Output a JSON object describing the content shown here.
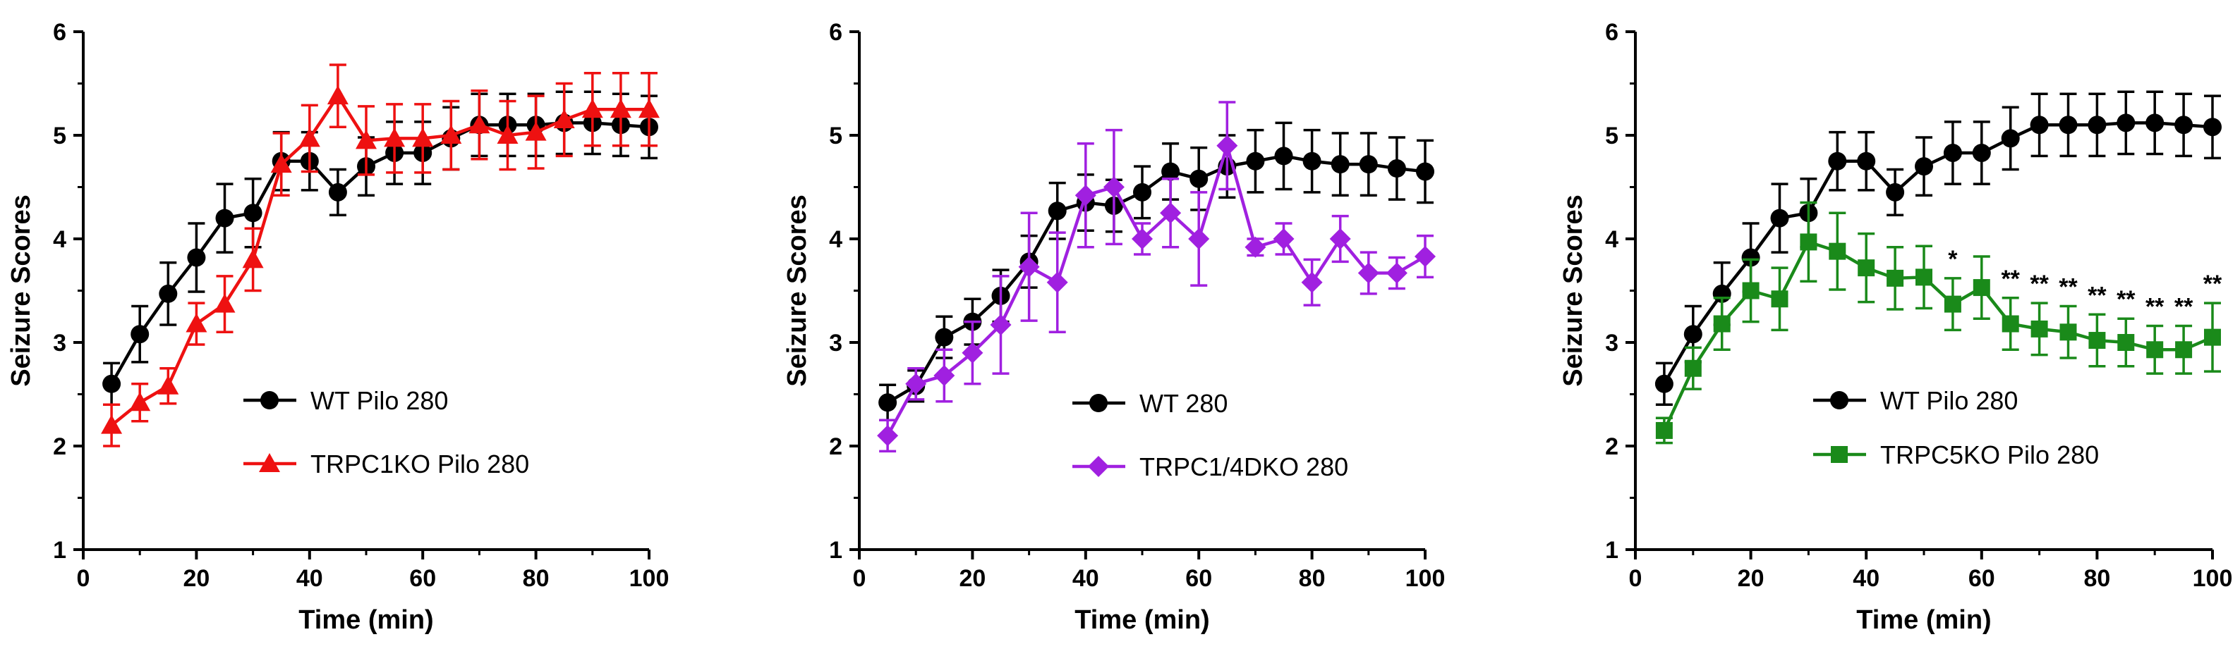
{
  "chart_data": [
    {
      "type": "line",
      "xlabel": "Time (min)",
      "ylabel": "Seizure Scores",
      "xlim": [
        0,
        100
      ],
      "ylim": [
        1,
        6
      ],
      "xticks": [
        "0",
        "20",
        "40",
        "60",
        "80",
        "100"
      ],
      "yticks": [
        "1",
        "2",
        "3",
        "4",
        "5",
        "6"
      ],
      "legend_position": "lower-center",
      "x": [
        5,
        10,
        15,
        20,
        25,
        30,
        35,
        40,
        45,
        50,
        55,
        60,
        65,
        70,
        75,
        80,
        85,
        90,
        95,
        100
      ],
      "series": [
        {
          "name": "WT Pilo 280",
          "color": "#000000",
          "marker": "circle",
          "values": [
            2.6,
            3.08,
            3.47,
            3.82,
            4.2,
            4.25,
            4.75,
            4.75,
            4.45,
            4.7,
            4.83,
            4.83,
            4.97,
            5.1,
            5.1,
            5.1,
            5.12,
            5.12,
            5.1,
            5.08
          ],
          "errors": [
            0.2,
            0.27,
            0.3,
            0.33,
            0.33,
            0.33,
            0.28,
            0.28,
            0.22,
            0.28,
            0.3,
            0.3,
            0.3,
            0.3,
            0.3,
            0.3,
            0.3,
            0.3,
            0.3,
            0.3
          ]
        },
        {
          "name": "TRPC1KO Pilo 280",
          "color": "#ee1111",
          "marker": "triangle",
          "values": [
            2.2,
            2.42,
            2.58,
            3.18,
            3.37,
            3.8,
            4.72,
            4.97,
            5.38,
            4.95,
            4.97,
            4.97,
            5.0,
            5.1,
            5.0,
            5.03,
            5.15,
            5.25,
            5.25,
            5.25
          ],
          "errors": [
            0.2,
            0.18,
            0.17,
            0.2,
            0.27,
            0.3,
            0.3,
            0.32,
            0.3,
            0.33,
            0.33,
            0.33,
            0.33,
            0.33,
            0.33,
            0.35,
            0.35,
            0.35,
            0.35,
            0.35
          ]
        }
      ]
    },
    {
      "type": "line",
      "xlabel": "Time (min)",
      "ylabel": "Seizure Scores",
      "xlim": [
        0,
        100
      ],
      "ylim": [
        1,
        6
      ],
      "xticks": [
        "0",
        "20",
        "40",
        "60",
        "80",
        "100"
      ],
      "yticks": [
        "1",
        "2",
        "3",
        "4",
        "5",
        "6"
      ],
      "legend_position": "lower-center",
      "x": [
        5,
        10,
        15,
        20,
        25,
        30,
        35,
        40,
        45,
        50,
        55,
        60,
        65,
        70,
        75,
        80,
        85,
        90,
        95,
        100
      ],
      "series": [
        {
          "name": "WT 280",
          "color": "#000000",
          "marker": "circle",
          "values": [
            2.42,
            2.58,
            3.05,
            3.2,
            3.45,
            3.78,
            4.27,
            4.35,
            4.32,
            4.45,
            4.65,
            4.58,
            4.7,
            4.75,
            4.8,
            4.75,
            4.72,
            4.72,
            4.68,
            4.65
          ],
          "errors": [
            0.17,
            0.15,
            0.2,
            0.22,
            0.25,
            0.25,
            0.27,
            0.27,
            0.25,
            0.25,
            0.27,
            0.3,
            0.3,
            0.3,
            0.32,
            0.3,
            0.3,
            0.3,
            0.3,
            0.3
          ]
        },
        {
          "name": "TRPC1/4DKO 280",
          "color": "#a020e0",
          "marker": "diamond",
          "values": [
            2.1,
            2.6,
            2.68,
            2.9,
            3.17,
            3.73,
            3.58,
            4.42,
            4.5,
            4.0,
            4.25,
            4.0,
            4.9,
            3.92,
            4.0,
            3.58,
            4.0,
            3.67,
            3.67,
            3.83
          ],
          "errors": [
            0.15,
            0.15,
            0.25,
            0.3,
            0.47,
            0.52,
            0.48,
            0.5,
            0.55,
            0.15,
            0.33,
            0.45,
            0.42,
            0.08,
            0.15,
            0.22,
            0.22,
            0.2,
            0.15,
            0.2
          ]
        }
      ]
    },
    {
      "type": "line",
      "xlabel": "Time (min)",
      "ylabel": "Seizure Scores",
      "xlim": [
        0,
        100
      ],
      "ylim": [
        1,
        6
      ],
      "xticks": [
        "0",
        "20",
        "40",
        "60",
        "80",
        "100"
      ],
      "yticks": [
        "1",
        "2",
        "3",
        "4",
        "5",
        "6"
      ],
      "legend_position": "lower-center",
      "x": [
        5,
        10,
        15,
        20,
        25,
        30,
        35,
        40,
        45,
        50,
        55,
        60,
        65,
        70,
        75,
        80,
        85,
        90,
        95,
        100
      ],
      "series": [
        {
          "name": "WT Pilo 280",
          "color": "#000000",
          "marker": "circle",
          "values": [
            2.6,
            3.08,
            3.47,
            3.82,
            4.2,
            4.25,
            4.75,
            4.75,
            4.45,
            4.7,
            4.83,
            4.83,
            4.97,
            5.1,
            5.1,
            5.1,
            5.12,
            5.12,
            5.1,
            5.08
          ],
          "errors": [
            0.2,
            0.27,
            0.3,
            0.33,
            0.33,
            0.33,
            0.28,
            0.28,
            0.22,
            0.28,
            0.3,
            0.3,
            0.3,
            0.3,
            0.3,
            0.3,
            0.3,
            0.3,
            0.3,
            0.3
          ]
        },
        {
          "name": "TRPC5KO Pilo 280",
          "color": "#1a8a1a",
          "marker": "square",
          "values": [
            2.15,
            2.75,
            3.18,
            3.5,
            3.42,
            3.97,
            3.88,
            3.72,
            3.62,
            3.63,
            3.37,
            3.53,
            3.18,
            3.13,
            3.1,
            3.02,
            3.0,
            2.93,
            2.93,
            3.05
          ],
          "errors": [
            0.12,
            0.2,
            0.25,
            0.3,
            0.3,
            0.38,
            0.37,
            0.33,
            0.3,
            0.3,
            0.25,
            0.3,
            0.25,
            0.25,
            0.25,
            0.25,
            0.23,
            0.23,
            0.23,
            0.33
          ]
        }
      ],
      "annotations": [
        {
          "x": 55,
          "text": "*"
        },
        {
          "x": 65,
          "text": "**"
        },
        {
          "x": 70,
          "text": "**"
        },
        {
          "x": 75,
          "text": "**"
        },
        {
          "x": 80,
          "text": "**"
        },
        {
          "x": 85,
          "text": "**"
        },
        {
          "x": 90,
          "text": "**"
        },
        {
          "x": 95,
          "text": "**"
        },
        {
          "x": 100,
          "text": "**"
        }
      ]
    }
  ]
}
